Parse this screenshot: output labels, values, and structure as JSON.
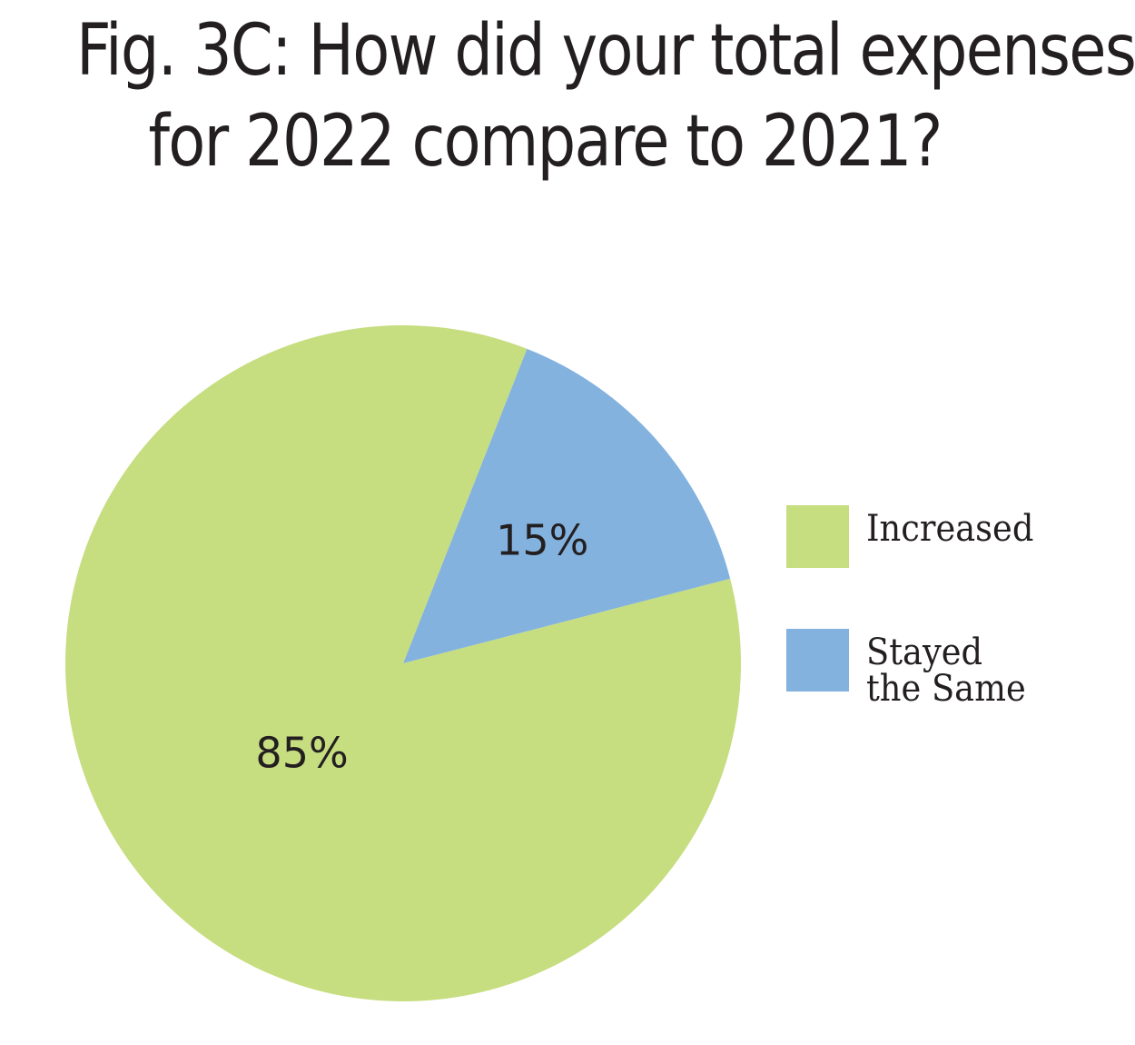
{
  "title": {
    "line1": "Fig. 3C: How did your total expenses",
    "line2": "for 2022 compare to 2021?"
  },
  "chart_data": {
    "type": "pie",
    "title": "Fig. 3C: How did your total expenses for 2022 compare to 2021?",
    "slices": [
      {
        "label": "Increased",
        "value": 85,
        "display": "85%",
        "color": "#c6dd80"
      },
      {
        "label": "Stayed the Same",
        "value": 15,
        "display": "15%",
        "color": "#83b2df"
      }
    ],
    "legend": {
      "position": "right",
      "entries": [
        {
          "label": "Increased",
          "display_text": "Increased",
          "color": "#c6dd80"
        },
        {
          "label": "Stayed the Same",
          "display_text": "Stayed\nthe Same",
          "color": "#83b2df"
        }
      ]
    }
  }
}
